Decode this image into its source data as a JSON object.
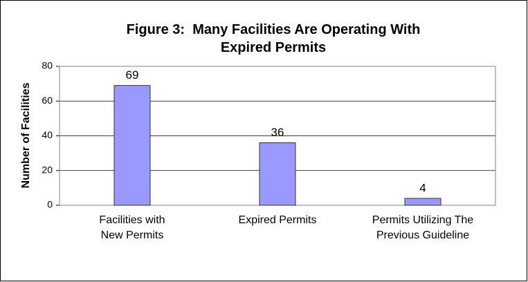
{
  "chart_data": {
    "type": "bar",
    "title": "Figure 3:  Many Facilities Are Operating With Expired Permits",
    "y_label": "Number of Facilities",
    "categories": [
      "Facilities with New Permits",
      "Expired Permits",
      "Permits Utilizing The Previous Guideline"
    ],
    "values": [
      69,
      36,
      4
    ],
    "color": "#9999ff",
    "ylim": [
      0,
      80
    ],
    "yticks": [
      0,
      20,
      40,
      60,
      80
    ],
    "grid": true
  }
}
